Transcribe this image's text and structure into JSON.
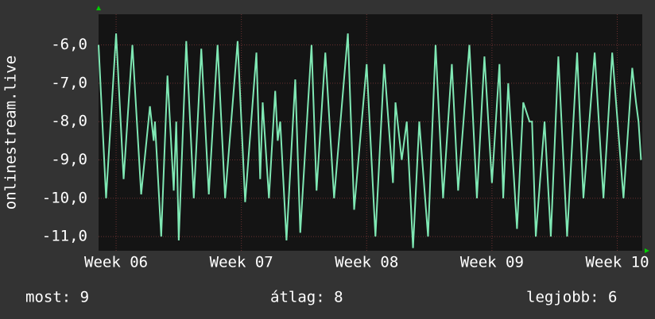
{
  "chart_data": {
    "type": "line",
    "y_label": "onlinestream.live",
    "x": [
      5.86,
      5.92,
      6.0,
      6.06,
      6.13,
      6.2,
      6.27,
      6.3,
      6.31,
      6.36,
      6.41,
      6.46,
      6.48,
      6.5,
      6.56,
      6.62,
      6.68,
      6.74,
      6.81,
      6.87,
      6.97,
      7.03,
      7.12,
      7.15,
      7.17,
      7.22,
      7.27,
      7.29,
      7.31,
      7.36,
      7.43,
      7.47,
      7.56,
      7.6,
      7.67,
      7.74,
      7.85,
      7.9,
      8.0,
      8.07,
      8.14,
      8.21,
      8.23,
      8.28,
      8.32,
      8.37,
      8.42,
      8.49,
      8.55,
      8.61,
      8.68,
      8.73,
      8.82,
      8.88,
      8.94,
      9.0,
      9.06,
      9.09,
      9.13,
      9.2,
      9.25,
      9.3,
      9.32,
      9.35,
      9.42,
      9.47,
      9.53,
      9.6,
      9.68,
      9.73,
      9.82,
      9.89,
      9.96,
      10.05,
      10.12,
      10.15,
      10.17,
      10.19
    ],
    "series": [
      {
        "color": "#7fe8b4",
        "values": [
          -6.0,
          -10.0,
          -5.7,
          -9.5,
          -6.0,
          -9.9,
          -7.6,
          -8.5,
          -8.0,
          -11.0,
          -6.8,
          -9.8,
          -8.0,
          -11.1,
          -5.9,
          -10.0,
          -6.1,
          -9.9,
          -6.0,
          -10.0,
          -5.9,
          -10.1,
          -6.2,
          -9.5,
          -7.5,
          -10.0,
          -7.2,
          -8.5,
          -8.0,
          -11.1,
          -6.9,
          -10.9,
          -6.0,
          -9.8,
          -6.2,
          -10.0,
          -5.7,
          -10.3,
          -6.5,
          -11.0,
          -6.5,
          -9.6,
          -7.5,
          -9.0,
          -8.0,
          -11.3,
          -8.0,
          -11.0,
          -6.0,
          -10.0,
          -6.5,
          -9.8,
          -6.0,
          -10.0,
          -6.3,
          -9.6,
          -6.5,
          -10.0,
          -7.0,
          -10.8,
          -7.5,
          -8.0,
          -8.0,
          -11.0,
          -8.0,
          -11.0,
          -6.3,
          -11.0,
          -6.2,
          -10.0,
          -6.2,
          -10.0,
          -6.2,
          -10.0,
          -6.6,
          -7.5,
          -8.0,
          -9.0
        ]
      }
    ],
    "xlim": [
      5.86,
      10.2
    ],
    "xticks": [
      {
        "value": 6,
        "label": "Week 06"
      },
      {
        "value": 7,
        "label": "Week 07"
      },
      {
        "value": 8,
        "label": "Week 08"
      },
      {
        "value": 9,
        "label": "Week 09"
      },
      {
        "value": 10,
        "label": "Week 10"
      }
    ],
    "ylim": [
      -11.37,
      -5.2
    ],
    "yticks": [
      {
        "value": -6,
        "label": "-6,0"
      },
      {
        "value": -7,
        "label": "-7,0"
      },
      {
        "value": -8,
        "label": "-8,0"
      },
      {
        "value": -9,
        "label": "-9,0"
      },
      {
        "value": -10,
        "label": "-10,0"
      },
      {
        "value": -11,
        "label": "-11,0"
      }
    ],
    "grid": true,
    "footer": [
      "most: 9",
      "átlag: 8",
      "legjobb: 6"
    ]
  }
}
